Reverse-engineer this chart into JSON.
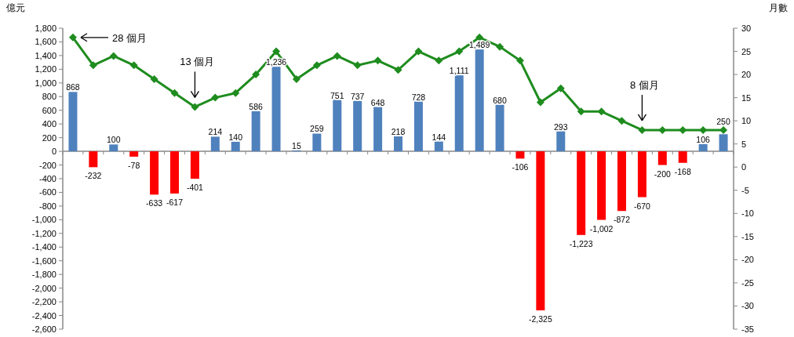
{
  "chart_data": {
    "type": "bar",
    "ylabel": "億元",
    "y2label": "月數",
    "categories": [
      null,
      null,
      null,
      null,
      null,
      null,
      null,
      null,
      null,
      null,
      null,
      null,
      null,
      null,
      null,
      null,
      null,
      null,
      null,
      null,
      null,
      null,
      null,
      null,
      null,
      null,
      null,
      null,
      null,
      null,
      null,
      null,
      null
    ],
    "series": [
      {
        "colors": [
          "#4f81bd",
          "#ff0000",
          "#4f81bd",
          "#ff0000",
          "#ff0000",
          "#ff0000",
          "#ff0000",
          "#4f81bd",
          "#4f81bd",
          "#4f81bd",
          "#4f81bd",
          "#4f81bd",
          "#4f81bd",
          "#4f81bd",
          "#4f81bd",
          "#4f81bd",
          "#4f81bd",
          "#4f81bd",
          "#4f81bd",
          "#4f81bd",
          "#4f81bd",
          "#4f81bd",
          "#ff0000",
          "#ff0000",
          "#4f81bd",
          "#ff0000",
          "#ff0000",
          "#ff0000",
          "#ff0000",
          "#ff0000",
          "#ff0000",
          "#4f81bd",
          "#4f81bd"
        ],
        "values": [
          868,
          -232,
          100,
          -78,
          -633,
          -617,
          -401,
          214,
          140,
          586,
          1236,
          15,
          259,
          751,
          737,
          648,
          218,
          728,
          144,
          1111,
          1489,
          680,
          -106,
          -2325,
          293,
          -1223,
          -1002,
          -872,
          -670,
          -200,
          -168,
          106,
          250
        ],
        "value_labels": [
          "868",
          "-232",
          "100",
          "-78",
          "-633",
          "-617",
          "-401",
          "214",
          "140",
          "586",
          "1,236",
          "15",
          "259",
          "751",
          "737",
          "648",
          "218",
          "728",
          "144",
          "1,111",
          "1,489",
          "680",
          "-106",
          "-2,325",
          "293",
          "-1,223",
          "-1,002",
          "-872",
          "-670",
          "-200",
          "-168",
          "106",
          "250"
        ]
      },
      {
        "type": "line",
        "axis": "y2",
        "color": "#1e8c1e",
        "values": [
          28,
          22,
          24,
          22,
          19,
          16,
          13,
          15,
          16,
          20,
          25,
          19,
          22,
          24,
          22,
          23,
          21,
          25,
          23,
          25,
          28,
          26,
          23,
          14,
          17,
          12,
          12,
          10,
          8,
          8,
          8,
          8,
          8
        ]
      }
    ],
    "marker": "diamond",
    "ylim": [
      -2600,
      1800
    ],
    "yticks": [
      {
        "value": 1800,
        "label": "1,800"
      },
      {
        "value": 1600,
        "label": "1,600"
      },
      {
        "value": 1400,
        "label": "1,400"
      },
      {
        "value": 1200,
        "label": "1,200"
      },
      {
        "value": 1000,
        "label": "1,000"
      },
      800,
      600,
      400,
      200,
      0,
      {
        "value": -200,
        "label": "-200"
      },
      {
        "value": -400,
        "label": "-400"
      },
      {
        "value": -600,
        "label": "-600"
      },
      {
        "value": -800,
        "label": "-800"
      },
      {
        "value": -1000,
        "label": "-1,000"
      },
      {
        "value": -1200,
        "label": "-1,200"
      },
      {
        "value": -1400,
        "label": "-1,400"
      },
      {
        "value": -1600,
        "label": "-1,600"
      },
      {
        "value": -1800,
        "label": "-1,800"
      },
      {
        "value": -2000,
        "label": "-2,000"
      },
      {
        "value": -2200,
        "label": "-2,200"
      },
      {
        "value": -2400,
        "label": "-2,400"
      },
      {
        "value": -2600,
        "label": "-2,600"
      }
    ],
    "y2lim": [
      -35,
      30
    ],
    "y2ticks": [
      30,
      25,
      20,
      15,
      10,
      5,
      0,
      {
        "value": -5,
        "label": "-5"
      },
      {
        "value": -10,
        "label": "-10"
      },
      {
        "value": -15,
        "label": "-15"
      },
      {
        "value": -20,
        "label": "-20"
      },
      {
        "value": -25,
        "label": "-25"
      },
      {
        "value": -30,
        "label": "-30"
      },
      {
        "value": -35,
        "label": "-35"
      }
    ],
    "annotations": [
      "28 個月",
      "13 個月",
      "8 個月"
    ]
  }
}
